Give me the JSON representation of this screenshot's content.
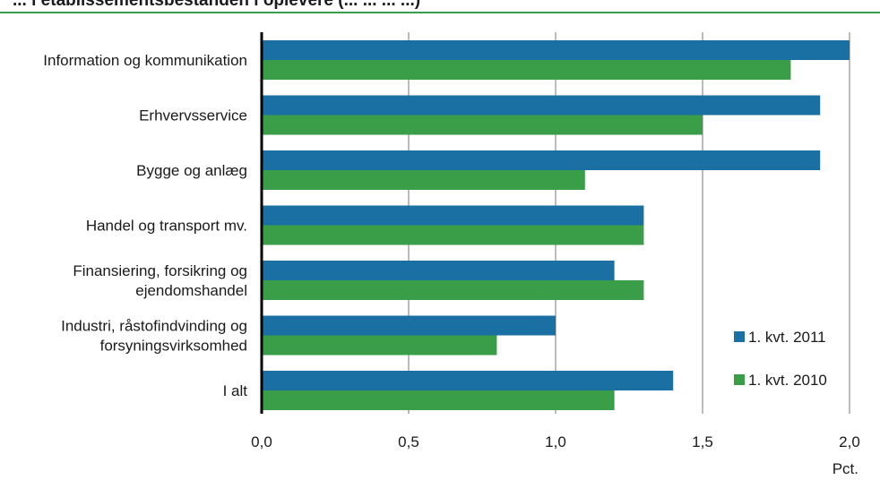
{
  "chart_data": {
    "type": "bar",
    "orientation": "horizontal",
    "title": "... i etablissementsbestanden i oplevere (... ... ... ...)",
    "categories": [
      [
        "Information og kommunikation"
      ],
      [
        "Erhvervsservice"
      ],
      [
        "Bygge og anlæg"
      ],
      [
        "Handel og transport mv."
      ],
      [
        "Finansiering, forsikring og",
        "ejendomshandel"
      ],
      [
        "Industri, råstofindvinding og",
        "forsyningsvirksomhed"
      ],
      [
        "I alt"
      ]
    ],
    "series": [
      {
        "name": "1. kvt. 2011",
        "color": "#1a6fa3",
        "values": [
          2.0,
          1.9,
          1.9,
          1.3,
          1.2,
          1.0,
          1.4
        ]
      },
      {
        "name": "1. kvt. 2010",
        "color": "#3a9e48",
        "values": [
          1.8,
          1.5,
          1.1,
          1.3,
          1.3,
          0.8,
          1.2
        ]
      }
    ],
    "xlim": [
      0,
      2.0
    ],
    "xticks": [
      0,
      0.5,
      1.0,
      1.5,
      2.0
    ],
    "xtick_labels": [
      "0,0",
      "0,5",
      "1,0",
      "1,5",
      "2,0"
    ],
    "xlabel": "Pct.",
    "grid": "vertical",
    "legend_position": "bottom-right",
    "title_rule_color": "#3a9e48",
    "gridline_color": "#a6a6a6",
    "axis_color": "#000000"
  }
}
